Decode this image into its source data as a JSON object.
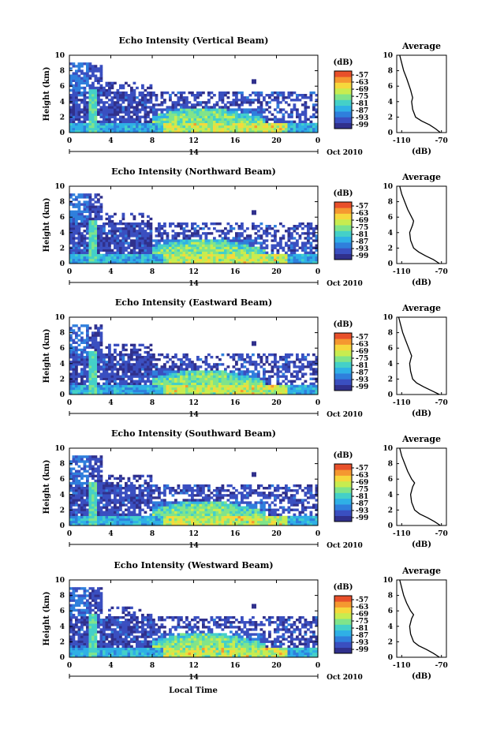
{
  "figure": {
    "bottom_xlabel": "Local Time"
  },
  "chart_data": [
    {
      "type": "heatmap",
      "title": "Echo Intensity (Vertical Beam)",
      "ylabel": "Height (km)",
      "xticks": [
        "0",
        "4",
        "8",
        "12",
        "16",
        "20",
        "0"
      ],
      "xlim": [
        0,
        24
      ],
      "yticks": [
        "0",
        "2",
        "4",
        "6",
        "8",
        "10"
      ],
      "ylim": [
        0,
        10
      ],
      "date_day": "14",
      "date_monthyear": "Oct 2010",
      "colorbar": {
        "unit": "(dB)",
        "ticks": [
          "-57",
          "-63",
          "-69",
          "-75",
          "-81",
          "-87",
          "-93",
          "-99"
        ]
      },
      "average_profile": {
        "title": "Average",
        "xlabel": "(dB)",
        "xticks": [
          "-110",
          "-70"
        ],
        "xlim": [
          -115,
          -65
        ],
        "yticks": [
          "0",
          "2",
          "4",
          "6",
          "8",
          "10"
        ],
        "ylim": [
          0,
          10
        ],
        "x": [
          -71,
          -76,
          -82,
          -90,
          -96,
          -99,
          -100,
          -99,
          -100,
          -101,
          -105,
          -108,
          -110,
          -112
        ],
        "y": [
          0,
          0.5,
          1,
          1.5,
          2,
          3,
          4,
          4.5,
          5,
          5.5,
          7,
          8,
          9,
          10
        ]
      }
    },
    {
      "type": "heatmap",
      "title": "Echo Intensity (Northward Beam)",
      "ylabel": "Height (km)",
      "xticks": [
        "0",
        "4",
        "8",
        "12",
        "16",
        "20",
        "0"
      ],
      "xlim": [
        0,
        24
      ],
      "yticks": [
        "0",
        "2",
        "4",
        "6",
        "8",
        "10"
      ],
      "ylim": [
        0,
        10
      ],
      "date_day": "14",
      "date_monthyear": "Oct 2010",
      "colorbar": {
        "unit": "(dB)",
        "ticks": [
          "-57",
          "-63",
          "-69",
          "-75",
          "-81",
          "-87",
          "-93",
          "-99"
        ]
      },
      "average_profile": {
        "title": "Average",
        "xlabel": "(dB)",
        "xticks": [
          "-110",
          "-70"
        ],
        "xlim": [
          -115,
          -65
        ],
        "yticks": [
          "0",
          "2",
          "4",
          "6",
          "8",
          "10"
        ],
        "ylim": [
          0,
          10
        ],
        "x": [
          -72,
          -78,
          -86,
          -93,
          -98,
          -101,
          -102,
          -99,
          -98,
          -100,
          -104,
          -107,
          -110,
          -112
        ],
        "y": [
          0,
          0.5,
          1,
          1.5,
          2,
          3,
          4,
          5,
          5.5,
          6,
          7,
          8,
          9,
          10
        ]
      }
    },
    {
      "type": "heatmap",
      "title": "Echo Intensity (Eastward Beam)",
      "ylabel": "Height (km)",
      "xticks": [
        "0",
        "4",
        "8",
        "12",
        "16",
        "20",
        "0"
      ],
      "xlim": [
        0,
        24
      ],
      "yticks": [
        "0",
        "2",
        "4",
        "6",
        "8",
        "10"
      ],
      "ylim": [
        0,
        10
      ],
      "date_day": "14",
      "date_monthyear": "Oct 2010",
      "colorbar": {
        "unit": "(dB)",
        "ticks": [
          "-57",
          "-63",
          "-69",
          "-75",
          "-81",
          "-87",
          "-93",
          "-99"
        ]
      },
      "average_profile": {
        "title": "Average",
        "xlabel": "(dB)",
        "xticks": [
          "-110",
          "-70"
        ],
        "xlim": [
          -115,
          -65
        ],
        "yticks": [
          "0",
          "2",
          "4",
          "6",
          "8",
          "10"
        ],
        "ylim": [
          0,
          10
        ],
        "x": [
          -72,
          -80,
          -88,
          -95,
          -99,
          -101,
          -102,
          -101,
          -100,
          -103,
          -106,
          -109,
          -111,
          -113
        ],
        "y": [
          0,
          0.5,
          1,
          1.5,
          2,
          3,
          4,
          4.5,
          5,
          6,
          7,
          8,
          9,
          10
        ]
      }
    },
    {
      "type": "heatmap",
      "title": "Echo Intensity (Southward Beam)",
      "ylabel": "Height (km)",
      "xticks": [
        "0",
        "4",
        "8",
        "12",
        "16",
        "20",
        "0"
      ],
      "xlim": [
        0,
        24
      ],
      "yticks": [
        "0",
        "2",
        "4",
        "6",
        "8",
        "10"
      ],
      "ylim": [
        0,
        10
      ],
      "date_day": "14",
      "date_monthyear": "Oct 2010",
      "colorbar": {
        "unit": "(dB)",
        "ticks": [
          "-57",
          "-63",
          "-69",
          "-75",
          "-81",
          "-87",
          "-93",
          "-99"
        ]
      },
      "average_profile": {
        "title": "Average",
        "xlabel": "(dB)",
        "xticks": [
          "-110",
          "-70"
        ],
        "xlim": [
          -115,
          -65
        ],
        "yticks": [
          "0",
          "2",
          "4",
          "6",
          "8",
          "10"
        ],
        "ylim": [
          0,
          10
        ],
        "x": [
          -71,
          -77,
          -84,
          -92,
          -97,
          -100,
          -101,
          -99,
          -97,
          -100,
          -104,
          -107,
          -110,
          -112
        ],
        "y": [
          0,
          0.5,
          1,
          1.5,
          2,
          3,
          4,
          5,
          5.5,
          6,
          7,
          8,
          9,
          10
        ]
      }
    },
    {
      "type": "heatmap",
      "title": "Echo Intensity (Westward Beam)",
      "ylabel": "Height (km)",
      "xticks": [
        "0",
        "4",
        "8",
        "12",
        "16",
        "20",
        "0"
      ],
      "xlim": [
        0,
        24
      ],
      "yticks": [
        "0",
        "2",
        "4",
        "6",
        "8",
        "10"
      ],
      "ylim": [
        0,
        10
      ],
      "date_day": "14",
      "date_monthyear": "Oct 2010",
      "colorbar": {
        "unit": "(dB)",
        "ticks": [
          "-57",
          "-63",
          "-69",
          "-75",
          "-81",
          "-87",
          "-93",
          "-99"
        ]
      },
      "average_profile": {
        "title": "Average",
        "xlabel": "(dB)",
        "xticks": [
          "-110",
          "-70"
        ],
        "xlim": [
          -115,
          -65
        ],
        "yticks": [
          "0",
          "2",
          "4",
          "6",
          "8",
          "10"
        ],
        "ylim": [
          0,
          10
        ],
        "x": [
          -72,
          -78,
          -85,
          -93,
          -98,
          -101,
          -102,
          -100,
          -98,
          -101,
          -105,
          -108,
          -110,
          -112
        ],
        "y": [
          0,
          0.5,
          1,
          1.5,
          2,
          3,
          4,
          5,
          5.5,
          6,
          7,
          8,
          9,
          10
        ]
      }
    }
  ]
}
